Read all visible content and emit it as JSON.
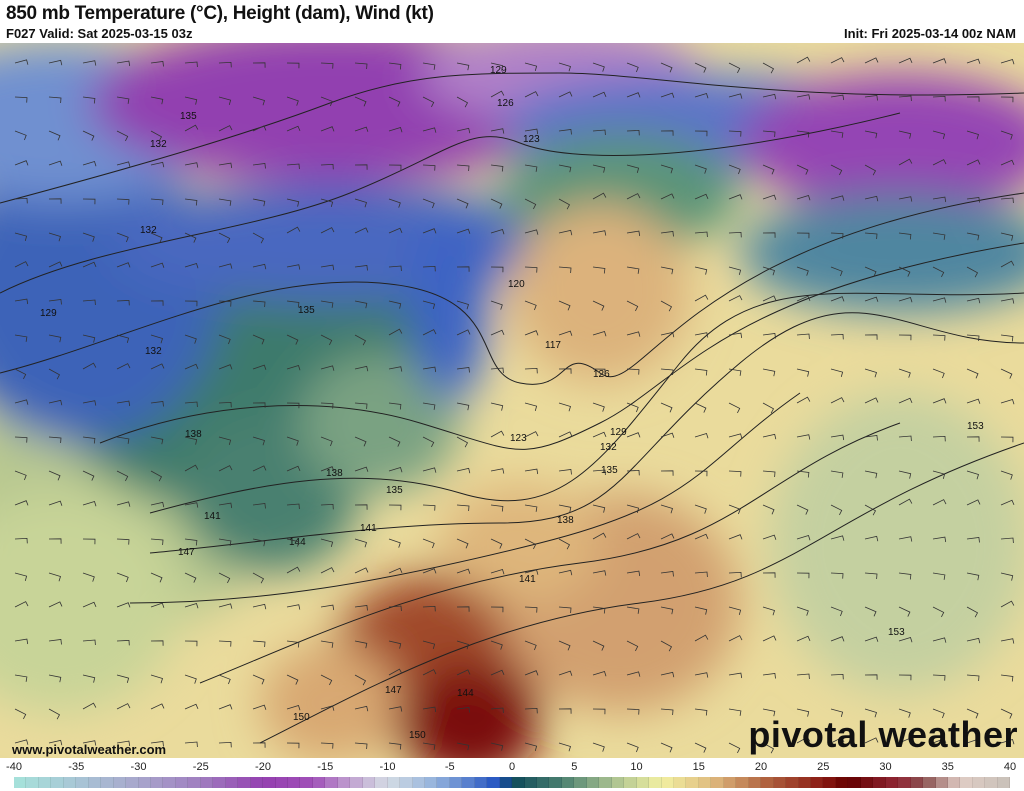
{
  "header": {
    "title": "850 mb Temperature (°C), Height (dam), Wind (kt)",
    "valid": "F027 Valid: Sat 2025-03-15 03z",
    "init": "Init: Fri 2025-03-14 00z NAM"
  },
  "map": {
    "contour_labels": [
      "129",
      "126",
      "123",
      "132",
      "135",
      "132",
      "129",
      "135",
      "132",
      "120",
      "117",
      "126",
      "123",
      "129",
      "132",
      "135",
      "138",
      "138",
      "135",
      "141",
      "138",
      "141",
      "144",
      "147",
      "141",
      "144",
      "147",
      "150",
      "150",
      "153",
      "153"
    ],
    "watermark_url": "www.pivotalweather.com",
    "logo_text": "pivotal weather"
  },
  "colorbar": {
    "unit": "°C",
    "ticks": [
      "-40",
      "-35",
      "-30",
      "-25",
      "-20",
      "-15",
      "-10",
      "-5",
      "0",
      "5",
      "10",
      "15",
      "20",
      "25",
      "30",
      "35",
      "40"
    ],
    "range": [
      -40,
      40
    ],
    "color_stops": [
      [
        -40,
        "#a6e3da"
      ],
      [
        -35,
        "#a8c6d6"
      ],
      [
        -30,
        "#a8a6cc"
      ],
      [
        -25,
        "#a07ec0"
      ],
      [
        -20,
        "#9440b0"
      ],
      [
        -16,
        "#a050b8"
      ],
      [
        -13,
        "#c0a0d0"
      ],
      [
        -10,
        "#d4dce4"
      ],
      [
        -6,
        "#90b0dc"
      ],
      [
        -1,
        "#2050c0"
      ],
      [
        0,
        "#0e4a5a"
      ],
      [
        4,
        "#4a8070"
      ],
      [
        8,
        "#a8c090"
      ],
      [
        12,
        "#f2f0a2"
      ],
      [
        16,
        "#e0bc80"
      ],
      [
        20,
        "#b46a44"
      ],
      [
        25,
        "#8a1a14"
      ],
      [
        27,
        "#640000"
      ],
      [
        31,
        "#922836"
      ],
      [
        33,
        "#8a5050"
      ],
      [
        36,
        "#e0ccc4"
      ],
      [
        40,
        "#c8c0b8"
      ]
    ]
  }
}
